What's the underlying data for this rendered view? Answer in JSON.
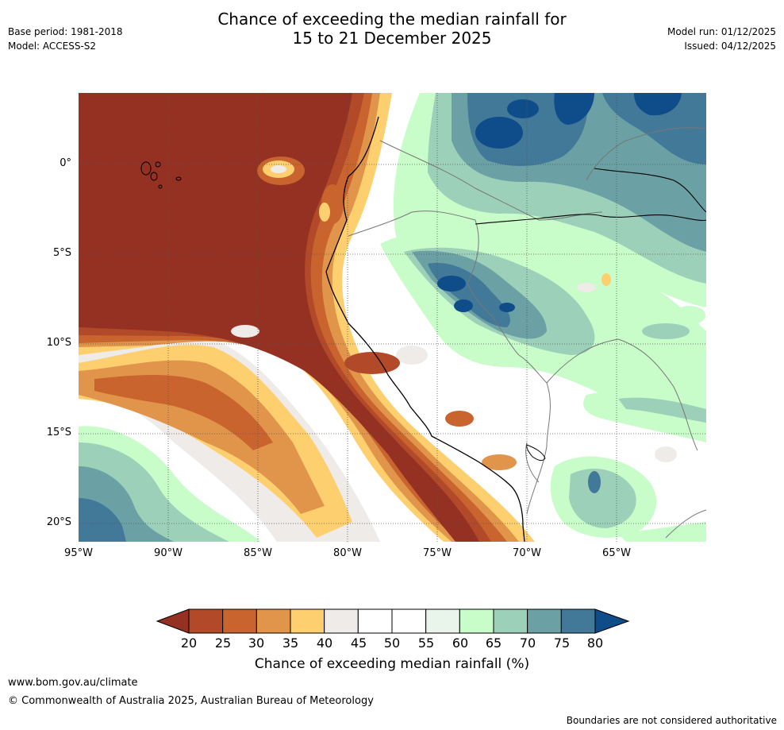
{
  "header": {
    "title_line1": "Chance of exceeding the median rainfall for",
    "title_line2": "15 to 21 December 2025",
    "base_period": "Base period: 1981-2018",
    "model": "Model: ACCESS-S2",
    "model_run": "Model run: 01/12/2025",
    "issued": "Issued: 04/12/2025"
  },
  "map": {
    "x_ticks": [
      "95°W",
      "90°W",
      "85°W",
      "80°W",
      "75°W",
      "70°W",
      "65°W"
    ],
    "y_ticks": [
      "0°",
      "5°S",
      "10°S",
      "15°S",
      "20°S"
    ]
  },
  "colorbar": {
    "ticks": [
      "20",
      "25",
      "30",
      "35",
      "40",
      "45",
      "50",
      "55",
      "60",
      "65",
      "70",
      "75",
      "80"
    ],
    "colors": [
      "#943122",
      "#b24a2a",
      "#c9642f",
      "#e0954a",
      "#fdcf6f",
      "#eeebe8",
      "#ffffff",
      "#ffffff",
      "#e9f4ea",
      "#c8fcc9",
      "#9dd0b9",
      "#6ba1a4",
      "#427898",
      "#0e4c8a"
    ],
    "title": "Chance of exceeding median rainfall (%)"
  },
  "footer": {
    "url": "www.bom.gov.au/climate",
    "copyright": "© Commonwealth of Australia 2025, Australian Bureau of Meteorology",
    "disclaimer": "Boundaries are not considered authoritative"
  }
}
